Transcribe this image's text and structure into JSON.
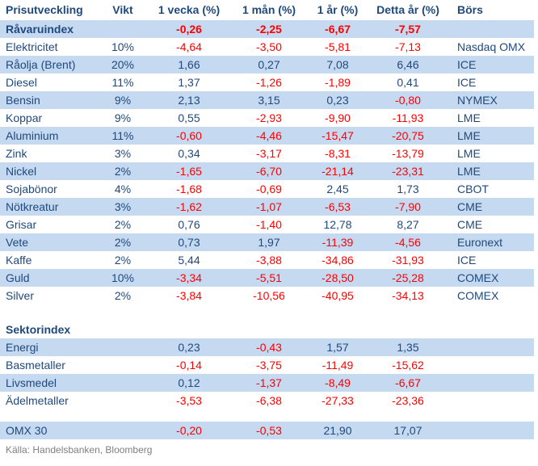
{
  "colors": {
    "text_navy": "#1F497D",
    "negative_red": "#FF0000",
    "row_shade_blue": "#C5D9F1",
    "footer_gray": "#808080",
    "background": "#FFFFFF"
  },
  "chart_data": {
    "type": "table",
    "title": "Prisutveckling",
    "columns": [
      "Prisutveckling",
      "Vikt",
      "1 vecka (%)",
      "1 mån (%)",
      "1 år (%)",
      "Detta år (%)",
      "Börs"
    ],
    "legend_note": "negative values shown in red, positive in navy",
    "sections": [
      {
        "label": "",
        "gap_before": 0,
        "rows": [
          {
            "cells": [
              "Råvaruindex",
              "",
              "-0,26",
              "-2,25",
              "-6,67",
              "-7,57",
              ""
            ],
            "bold": true,
            "shaded": true
          },
          {
            "cells": [
              "Elektricitet",
              "10%",
              "-4,64",
              "-3,50",
              "-5,81",
              "-7,13",
              "Nasdaq OMX"
            ],
            "bold": false,
            "shaded": false
          },
          {
            "cells": [
              "Råolja (Brent)",
              "20%",
              "1,66",
              "0,27",
              "7,08",
              "6,46",
              "ICE"
            ],
            "bold": false,
            "shaded": true
          },
          {
            "cells": [
              "Diesel",
              "11%",
              "1,37",
              "-1,26",
              "-1,89",
              "0,41",
              "ICE"
            ],
            "bold": false,
            "shaded": false
          },
          {
            "cells": [
              "Bensin",
              "9%",
              "2,13",
              "3,15",
              "0,23",
              "-0,80",
              "NYMEX"
            ],
            "bold": false,
            "shaded": true
          },
          {
            "cells": [
              "Koppar",
              "9%",
              "0,55",
              "-2,93",
              "-9,90",
              "-11,93",
              "LME"
            ],
            "bold": false,
            "shaded": false
          },
          {
            "cells": [
              "Aluminium",
              "11%",
              "-0,60",
              "-4,46",
              "-15,47",
              "-20,75",
              "LME"
            ],
            "bold": false,
            "shaded": true
          },
          {
            "cells": [
              "Zink",
              "3%",
              "0,34",
              "-3,17",
              "-8,31",
              "-13,79",
              "LME"
            ],
            "bold": false,
            "shaded": false
          },
          {
            "cells": [
              "Nickel",
              "2%",
              "-1,65",
              "-6,70",
              "-21,14",
              "-23,31",
              "LME"
            ],
            "bold": false,
            "shaded": true
          },
          {
            "cells": [
              "Sojabönor",
              "4%",
              "-1,68",
              "-0,69",
              "2,45",
              "1,73",
              "CBOT"
            ],
            "bold": false,
            "shaded": false
          },
          {
            "cells": [
              "Nötkreatur",
              "3%",
              "-1,62",
              "-1,07",
              "-6,53",
              "-7,90",
              "CME"
            ],
            "bold": false,
            "shaded": true
          },
          {
            "cells": [
              "Grisar",
              "2%",
              "0,76",
              "-1,40",
              "12,78",
              "8,27",
              "CME"
            ],
            "bold": false,
            "shaded": false
          },
          {
            "cells": [
              "Vete",
              "2%",
              "0,73",
              "1,97",
              "-11,39",
              "-4,56",
              "Euronext"
            ],
            "bold": false,
            "shaded": true
          },
          {
            "cells": [
              "Kaffe",
              "2%",
              "5,44",
              "-3,88",
              "-34,86",
              "-31,93",
              "ICE"
            ],
            "bold": false,
            "shaded": false
          },
          {
            "cells": [
              "Guld",
              "10%",
              "-3,34",
              "-5,51",
              "-28,50",
              "-25,28",
              "COMEX"
            ],
            "bold": false,
            "shaded": true
          },
          {
            "cells": [
              "Silver",
              "2%",
              "-3,84",
              "-10,56",
              "-40,95",
              "-34,13",
              "COMEX"
            ],
            "bold": false,
            "shaded": false
          }
        ]
      },
      {
        "label": "Sektorindex",
        "gap_before": 20,
        "rows": [
          {
            "cells": [
              "Energi",
              "",
              "0,23",
              "-0,43",
              "1,57",
              "1,35",
              ""
            ],
            "bold": false,
            "shaded": true
          },
          {
            "cells": [
              "Basmetaller",
              "",
              "-0,14",
              "-3,75",
              "-11,49",
              "-15,62",
              ""
            ],
            "bold": false,
            "shaded": false
          },
          {
            "cells": [
              "Livsmedel",
              "",
              "0,12",
              "-1,37",
              "-8,49",
              "-6,67",
              ""
            ],
            "bold": false,
            "shaded": true
          },
          {
            "cells": [
              "Ädelmetaller",
              "",
              "-3,53",
              "-6,38",
              "-27,33",
              "-23,36",
              ""
            ],
            "bold": false,
            "shaded": false
          }
        ]
      },
      {
        "label": "",
        "gap_before": 15,
        "rows": [
          {
            "cells": [
              "OMX 30",
              "",
              "-0,20",
              "-0,53",
              "21,90",
              "17,07",
              ""
            ],
            "bold": false,
            "shaded": true
          }
        ]
      }
    ]
  },
  "footer": {
    "source_label": "Källa: Handelsbanken, Bloomberg"
  }
}
